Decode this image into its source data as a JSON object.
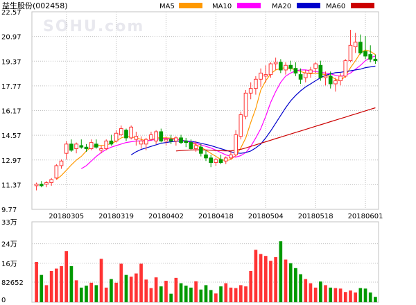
{
  "title": "益生股份",
  "code": "(002458)",
  "watermark": "SOHU.com",
  "legend": [
    {
      "label": "MA5",
      "color": "#ff9900"
    },
    {
      "label": "MA10",
      "color": "#ff00ff"
    },
    {
      "label": "MA20",
      "color": "#0000cc"
    },
    {
      "label": "MA60",
      "color": "#cc0000"
    }
  ],
  "colors": {
    "up": "#ff3333",
    "down": "#009900",
    "grid": "#c0c0c0",
    "axis": "#000000"
  },
  "chart_data": [
    {
      "type": "candlestick",
      "title": "益生股份(002458)",
      "ylim": [
        9.77,
        22.57
      ],
      "yticks": [
        "22.57",
        "20.97",
        "19.37",
        "17.77",
        "16.17",
        "14.57",
        "12.97",
        "11.37",
        "9.77"
      ],
      "xticks": [
        {
          "index": 6,
          "label": "20180305"
        },
        {
          "index": 16,
          "label": "20180319"
        },
        {
          "index": 26,
          "label": "20180402"
        },
        {
          "index": 36,
          "label": "20180418"
        },
        {
          "index": 46,
          "label": "20180504"
        },
        {
          "index": 56,
          "label": "20180518"
        },
        {
          "index": 66,
          "label": "20180601"
        }
      ],
      "ohlc": [
        [
          11.3,
          11.5,
          11.0,
          11.4
        ],
        [
          11.4,
          11.6,
          11.2,
          11.3
        ],
        [
          11.4,
          11.6,
          11.2,
          11.5
        ],
        [
          11.5,
          11.8,
          11.3,
          11.7
        ],
        [
          11.8,
          12.7,
          11.7,
          12.6
        ],
        [
          12.6,
          13.0,
          12.4,
          12.9
        ],
        [
          13.4,
          14.2,
          13.0,
          14.0
        ],
        [
          14.0,
          14.3,
          13.5,
          13.6
        ],
        [
          13.7,
          14.1,
          13.4,
          14.0
        ],
        [
          13.9,
          14.3,
          13.7,
          13.8
        ],
        [
          13.8,
          14.0,
          13.5,
          13.7
        ],
        [
          13.7,
          14.3,
          13.6,
          14.1
        ],
        [
          14.0,
          14.3,
          13.7,
          13.8
        ],
        [
          13.6,
          13.9,
          13.4,
          13.7
        ],
        [
          13.7,
          14.3,
          13.6,
          14.2
        ],
        [
          14.2,
          14.6,
          13.9,
          14.0
        ],
        [
          14.2,
          14.9,
          14.1,
          14.7
        ],
        [
          14.6,
          15.2,
          14.5,
          15.0
        ],
        [
          14.9,
          15.0,
          14.2,
          14.4
        ],
        [
          14.4,
          15.2,
          14.3,
          15.1
        ],
        [
          14.3,
          14.8,
          13.9,
          14.5
        ],
        [
          14.0,
          14.5,
          13.7,
          14.2
        ],
        [
          14.0,
          14.4,
          13.6,
          14.3
        ],
        [
          14.3,
          14.8,
          14.2,
          14.6
        ],
        [
          14.2,
          14.9,
          14.0,
          14.8
        ],
        [
          14.8,
          15.0,
          14.1,
          14.2
        ],
        [
          14.2,
          14.5,
          13.9,
          14.3
        ],
        [
          14.3,
          14.6,
          14.0,
          14.2
        ],
        [
          14.2,
          14.5,
          13.9,
          14.4
        ],
        [
          14.4,
          14.6,
          14.0,
          14.1
        ],
        [
          14.2,
          14.4,
          13.8,
          14.1
        ],
        [
          14.1,
          14.3,
          13.6,
          13.7
        ],
        [
          13.7,
          14.2,
          13.5,
          13.9
        ],
        [
          13.8,
          14.0,
          13.2,
          13.4
        ],
        [
          13.3,
          13.6,
          12.9,
          13.1
        ],
        [
          13.1,
          13.3,
          12.5,
          12.8
        ],
        [
          12.8,
          13.1,
          12.6,
          13.0
        ],
        [
          13.0,
          13.3,
          12.7,
          12.8
        ],
        [
          12.9,
          13.2,
          12.7,
          13.1
        ],
        [
          13.1,
          13.6,
          13.0,
          13.3
        ],
        [
          13.3,
          14.9,
          13.2,
          14.6
        ],
        [
          14.5,
          16.1,
          14.3,
          15.9
        ],
        [
          15.8,
          17.5,
          15.6,
          17.3
        ],
        [
          17.3,
          18.0,
          16.9,
          17.6
        ],
        [
          17.6,
          18.4,
          17.2,
          18.2
        ],
        [
          18.2,
          18.9,
          17.7,
          18.6
        ],
        [
          18.4,
          19.1,
          18.0,
          18.5
        ],
        [
          18.5,
          19.3,
          18.3,
          19.2
        ],
        [
          19.2,
          19.6,
          18.8,
          19.3
        ],
        [
          19.3,
          19.5,
          18.6,
          18.8
        ],
        [
          18.8,
          19.3,
          18.5,
          19.1
        ],
        [
          19.1,
          19.4,
          18.7,
          18.9
        ],
        [
          18.9,
          19.3,
          18.4,
          18.6
        ],
        [
          18.5,
          18.9,
          17.9,
          18.2
        ],
        [
          18.3,
          18.8,
          18.0,
          18.6
        ],
        [
          18.6,
          19.0,
          18.3,
          18.8
        ],
        [
          18.9,
          19.3,
          18.6,
          19.2
        ],
        [
          19.1,
          19.4,
          18.1,
          18.3
        ],
        [
          18.3,
          18.7,
          17.8,
          18.4
        ],
        [
          18.4,
          18.7,
          17.6,
          17.9
        ],
        [
          17.9,
          18.3,
          17.4,
          18.1
        ],
        [
          18.1,
          18.6,
          17.8,
          18.4
        ],
        [
          18.4,
          19.5,
          18.3,
          19.4
        ],
        [
          19.4,
          21.4,
          19.3,
          20.4
        ],
        [
          20.3,
          21.2,
          19.9,
          20.6
        ],
        [
          20.6,
          21.1,
          19.8,
          19.9
        ],
        [
          20.0,
          21.0,
          19.5,
          19.7
        ],
        [
          19.8,
          20.4,
          19.3,
          19.5
        ],
        [
          19.5,
          19.8,
          19.2,
          19.4
        ]
      ],
      "ma_series": [
        {
          "name": "MA5",
          "values": [
            null,
            null,
            null,
            null,
            11.7,
            11.96,
            12.3,
            12.65,
            12.96,
            13.2,
            13.55,
            13.82,
            13.92,
            13.91,
            13.94,
            14.04,
            14.18,
            14.4,
            14.5,
            14.46,
            14.4,
            14.3,
            14.2,
            14.25,
            14.4,
            14.4,
            14.4,
            14.38,
            14.35,
            14.26,
            14.2,
            14.1,
            13.96,
            13.8,
            13.6,
            13.4,
            13.2,
            13.0,
            12.92,
            13.0,
            13.25,
            13.75,
            14.4,
            15.4,
            16.3,
            17.5,
            18.1,
            18.55,
            18.8,
            18.9,
            18.95,
            18.9,
            18.8,
            18.7,
            18.6,
            18.55,
            18.6,
            18.55,
            18.5,
            18.4,
            18.2,
            18.1,
            18.4,
            18.95,
            19.4,
            19.9,
            20.1,
            20.0,
            19.8
          ]
        },
        {
          "name": "MA10",
          "values": [
            null,
            null,
            null,
            null,
            null,
            null,
            null,
            null,
            null,
            12.4,
            12.6,
            12.9,
            13.2,
            13.45,
            13.65,
            13.8,
            13.9,
            14.0,
            14.1,
            14.15,
            14.2,
            14.2,
            14.2,
            14.25,
            14.3,
            14.35,
            14.35,
            14.33,
            14.3,
            14.25,
            14.2,
            14.12,
            14.04,
            13.95,
            13.85,
            13.75,
            13.6,
            13.45,
            13.3,
            13.2,
            13.15,
            13.25,
            13.45,
            13.85,
            14.4,
            15.0,
            15.8,
            16.7,
            17.4,
            18.0,
            18.4,
            18.6,
            18.75,
            18.8,
            18.8,
            18.75,
            18.7,
            18.65,
            18.6,
            18.55,
            18.45,
            18.4,
            18.45,
            18.6,
            18.85,
            19.1,
            19.4,
            19.6,
            19.7
          ]
        },
        {
          "name": "MA20",
          "values": [
            null,
            null,
            null,
            null,
            null,
            null,
            null,
            null,
            null,
            null,
            null,
            null,
            null,
            null,
            null,
            null,
            null,
            null,
            null,
            13.3,
            13.5,
            13.65,
            13.75,
            13.85,
            13.95,
            14.05,
            14.1,
            14.15,
            14.18,
            14.2,
            14.2,
            14.18,
            14.12,
            14.05,
            13.98,
            13.9,
            13.8,
            13.7,
            13.6,
            13.5,
            13.42,
            13.4,
            13.45,
            13.55,
            13.75,
            14.0,
            14.4,
            14.85,
            15.35,
            15.85,
            16.35,
            16.8,
            17.15,
            17.45,
            17.7,
            17.9,
            18.1,
            18.3,
            18.45,
            18.55,
            18.62,
            18.65,
            18.7,
            18.75,
            18.8,
            18.85,
            18.95,
            19.0,
            19.05
          ]
        },
        {
          "name": "MA60",
          "values": [
            null,
            null,
            null,
            null,
            null,
            null,
            null,
            null,
            null,
            null,
            null,
            null,
            null,
            null,
            null,
            null,
            null,
            null,
            null,
            null,
            null,
            null,
            null,
            null,
            null,
            null,
            null,
            null,
            13.55,
            13.58,
            13.6,
            13.62,
            13.63,
            13.63,
            13.62,
            13.6,
            13.58,
            13.57,
            13.56,
            13.56,
            13.6,
            13.66,
            13.75,
            13.85,
            13.95,
            14.05,
            14.15,
            14.25,
            14.35,
            14.45,
            14.55,
            14.65,
            14.75,
            14.85,
            14.95,
            15.05,
            15.15,
            15.25,
            15.35,
            15.45,
            15.55,
            15.65,
            15.75,
            15.85,
            15.95,
            16.05,
            16.15,
            16.25,
            16.35
          ]
        }
      ]
    },
    {
      "type": "bar",
      "title": "",
      "ylim": [
        0,
        330000
      ],
      "yticks": [
        "33万",
        "24万",
        "16万",
        "82652",
        "0"
      ],
      "values": [
        165000,
        112000,
        70000,
        128000,
        138000,
        148000,
        210000,
        148000,
        90000,
        60000,
        68000,
        80000,
        70000,
        178000,
        60000,
        95000,
        80000,
        158000,
        112000,
        105000,
        118000,
        158000,
        93000,
        58000,
        102000,
        65000,
        88000,
        35000,
        100000,
        78000,
        68000,
        60000,
        86000,
        52000,
        70000,
        50000,
        36000,
        65000,
        78000,
        60000,
        58000,
        70000,
        65000,
        128000,
        215000,
        198000,
        190000,
        170000,
        185000,
        250000,
        175000,
        160000,
        140000,
        115000,
        95000,
        78000,
        60000,
        85000,
        70000,
        60000,
        58000,
        56000,
        42000,
        48000,
        40000,
        58000,
        56000,
        40000,
        22000
      ]
    }
  ]
}
